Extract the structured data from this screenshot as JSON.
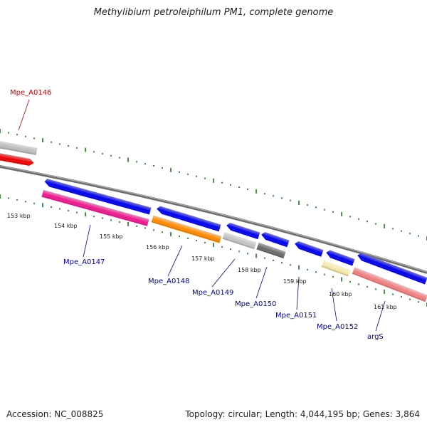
{
  "title": "Methylibium petroleiphilum PM1, complete genome",
  "footer": {
    "accession": "Accession: NC_008825",
    "summary": "Topology: circular; Length: 4,044,195 bp; Genes: 3,864"
  },
  "colors": {
    "backbone": "#777777",
    "tick": "#1a7a1a",
    "forward_gene": "#0000ee",
    "label_default": "#0000aa",
    "label_highlight": "#cc0000"
  },
  "kbp_labels": [
    "153 kbp",
    "154 kbp",
    "155 kbp",
    "156 kbp",
    "157 kbp",
    "158 kbp",
    "159 kbp",
    "160 kbp",
    "161 kbp"
  ],
  "gene_labels": [
    {
      "name": "Mpe_A0146",
      "color": "#cc0000"
    },
    {
      "name": "Mpe_A0147",
      "color": "#0000aa"
    },
    {
      "name": "Mpe_A0148",
      "color": "#0000aa"
    },
    {
      "name": "Mpe_A0149",
      "color": "#0000aa"
    },
    {
      "name": "Mpe_A0150",
      "color": "#0000aa"
    },
    {
      "name": "Mpe_A0151",
      "color": "#0000aa"
    },
    {
      "name": "Mpe_A0152",
      "color": "#0000aa"
    },
    {
      "name": "argS",
      "color": "#0000aa"
    }
  ]
}
